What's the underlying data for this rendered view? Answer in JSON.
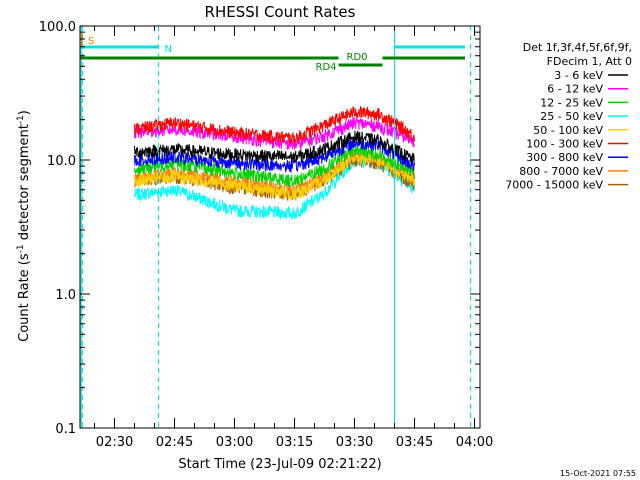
{
  "chart_data": {
    "type": "line",
    "title": "RHESSI Count Rates",
    "xlabel": "Start Time (23-Jul-09 02:21:22)",
    "ylabel_main": "Count Rate (s",
    "ylabel_sup1": "-1",
    "ylabel_mid": " detector segment",
    "ylabel_sup2": "-1",
    "ylabel_end": ")",
    "y_scale": "log",
    "ylim": [
      0.1,
      100.0
    ],
    "xlim": [
      "02:21:22",
      "04:01:22"
    ],
    "x_tick_labels": [
      "02:30",
      "02:45",
      "03:00",
      "03:15",
      "03:30",
      "03:45",
      "04:00"
    ],
    "y_tick_labels": [
      "100.0",
      "10.0",
      "1.0",
      "0.1"
    ],
    "legend_header": [
      "Det 1f,3f,4f,5f,6f,9f,",
      "FDecim 1, Att 0"
    ],
    "legend_position": "right",
    "timestamp": "15-Oct-2021 07:55",
    "annotations": {
      "saa": "S",
      "night": "N",
      "rd0": "RD0",
      "rd4": "RD4"
    },
    "colors": {
      "saa": "#e08000",
      "night": "#00e0e0",
      "decim": "#008000"
    },
    "data_start": "02:35",
    "data_end": "03:45",
    "profile_times": [
      "02:35",
      "02:45",
      "03:00",
      "03:15",
      "03:22",
      "03:30",
      "03:36",
      "03:40",
      "03:45"
    ],
    "series": [
      {
        "name": "3 - 6 keV",
        "color": "#000000",
        "values": [
          11.5,
          12,
          11,
          10.5,
          12,
          15,
          14,
          12,
          10
        ]
      },
      {
        "name": "6 - 12 keV",
        "color": "#ff00ff",
        "values": [
          16,
          17,
          15,
          13,
          15,
          19,
          18,
          16,
          14
        ]
      },
      {
        "name": "12 - 25 keV",
        "color": "#00d000",
        "values": [
          8.5,
          9.5,
          8,
          7,
          8.5,
          12,
          11,
          9.5,
          8
        ]
      },
      {
        "name": "25 - 50 keV",
        "color": "#00ffff",
        "values": [
          5.5,
          6,
          4.2,
          4,
          5.5,
          10,
          9.5,
          8,
          6
        ]
      },
      {
        "name": "50 - 100 keV",
        "color": "#ffd000",
        "values": [
          7,
          7.5,
          6.5,
          5.5,
          7,
          10.5,
          10,
          8.5,
          7
        ]
      },
      {
        "name": "100 - 300 keV",
        "color": "#ff0000",
        "values": [
          17,
          19,
          16,
          14.5,
          18,
          23,
          22,
          19,
          15
        ]
      },
      {
        "name": "300 - 800 keV",
        "color": "#0000ff",
        "values": [
          10,
          10.5,
          9.5,
          9,
          10.5,
          13.5,
          13,
          11,
          9
        ]
      },
      {
        "name": "800 - 7000 keV",
        "color": "#ff8000",
        "values": [
          7.5,
          8,
          7,
          6,
          7.5,
          11,
          10.5,
          9,
          7.5
        ]
      },
      {
        "name": "7000 - 15000 keV",
        "color": "#a06000",
        "values": [
          7,
          7.5,
          6.2,
          5.5,
          7,
          10,
          9.5,
          8,
          6.5
        ]
      }
    ]
  }
}
